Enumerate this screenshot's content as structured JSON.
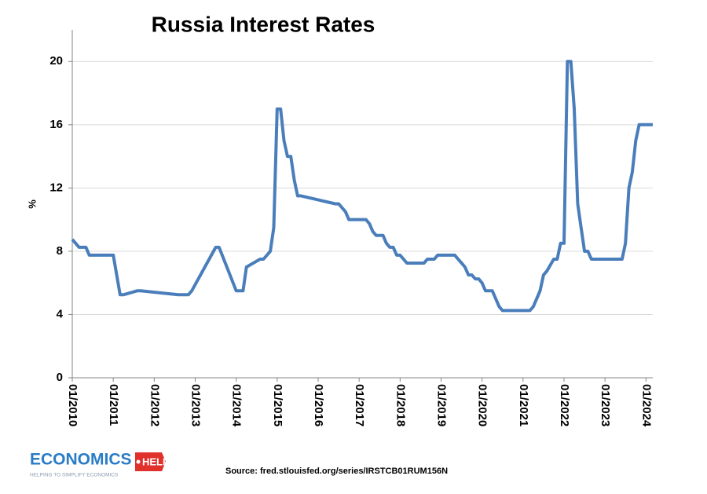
{
  "chart_data": {
    "type": "line",
    "title": "Russia Interest Rates",
    "ylabel": "%",
    "source": "Source: fred.stlouisfed.org/series/IRSTCB01RUM156N",
    "series": [
      {
        "name": "Russia Interest Rates",
        "color": "#4a7ebb",
        "x": [
          "01/2010",
          "02/2010",
          "03/2010",
          "05/2010",
          "06/2010",
          "12/2010",
          "01/2011",
          "03/2011",
          "04/2011",
          "08/2011",
          "09/2011",
          "08/2012",
          "09/2012",
          "11/2012",
          "12/2012",
          "07/2013",
          "08/2013",
          "01/2014",
          "03/2014",
          "04/2014",
          "08/2014",
          "09/2014",
          "11/2014",
          "12/2014",
          "01/2015",
          "02/2015",
          "03/2015",
          "04/2015",
          "05/2015",
          "06/2015",
          "07/2015",
          "08/2015",
          "06/2016",
          "07/2016",
          "09/2016",
          "10/2016",
          "03/2017",
          "04/2017",
          "05/2017",
          "06/2017",
          "08/2017",
          "09/2017",
          "10/2017",
          "11/2017",
          "12/2017",
          "01/2018",
          "02/2018",
          "03/2018",
          "08/2018",
          "09/2018",
          "11/2018",
          "12/2018",
          "05/2019",
          "06/2019",
          "07/2019",
          "08/2019",
          "09/2019",
          "10/2019",
          "11/2019",
          "12/2019",
          "01/2020",
          "02/2020",
          "04/2020",
          "06/2020",
          "07/2020",
          "03/2021",
          "04/2021",
          "05/2021",
          "06/2021",
          "07/2021",
          "08/2021",
          "10/2021",
          "11/2021",
          "12/2021",
          "01/2022",
          "02/2022",
          "03/2022",
          "04/2022",
          "05/2022",
          "06/2022",
          "07/2022",
          "08/2022",
          "09/2022",
          "06/2023",
          "07/2023",
          "08/2023",
          "09/2023",
          "10/2023",
          "11/2023",
          "03/2024"
        ],
        "values": [
          8.75,
          8.5,
          8.25,
          8.25,
          7.75,
          7.75,
          7.75,
          5.25,
          5.25,
          5.5,
          5.5,
          5.25,
          5.25,
          5.25,
          5.5,
          8.25,
          8.25,
          5.5,
          5.5,
          7,
          7.5,
          7.5,
          8,
          9.5,
          17,
          17,
          15,
          14,
          14,
          12.5,
          11.5,
          11.5,
          11,
          11,
          10.5,
          10,
          10,
          9.75,
          9.25,
          9,
          9,
          8.5,
          8.25,
          8.25,
          7.75,
          7.75,
          7.5,
          7.25,
          7.25,
          7.5,
          7.5,
          7.75,
          7.75,
          7.5,
          7.25,
          7,
          6.5,
          6.5,
          6.25,
          6.25,
          6,
          5.5,
          5.5,
          4.5,
          4.25,
          4.25,
          4.5,
          5,
          5.5,
          6.5,
          6.75,
          7.5,
          7.5,
          8.5,
          8.5,
          20,
          20,
          17,
          11,
          9.5,
          8,
          8,
          7.5,
          7.5,
          8.5,
          12,
          13,
          15,
          16,
          16
        ]
      }
    ],
    "xlim": [
      "01/2010",
      "03/2024"
    ],
    "xticks": [
      "01/2010",
      "01/2011",
      "01/2012",
      "01/2013",
      "01/2014",
      "01/2015",
      "01/2016",
      "01/2017",
      "01/2018",
      "01/2019",
      "01/2020",
      "01/2021",
      "01/2022",
      "01/2023",
      "01/2024"
    ],
    "ylim": [
      0,
      22
    ],
    "yticks": [
      0,
      4,
      8,
      12,
      16,
      20
    ],
    "grid": true
  },
  "logo": {
    "name": "ECONOMICS",
    "tag": "HELP",
    "tagline": "HELPING TO SIMPLIFY ECONOMICS"
  }
}
